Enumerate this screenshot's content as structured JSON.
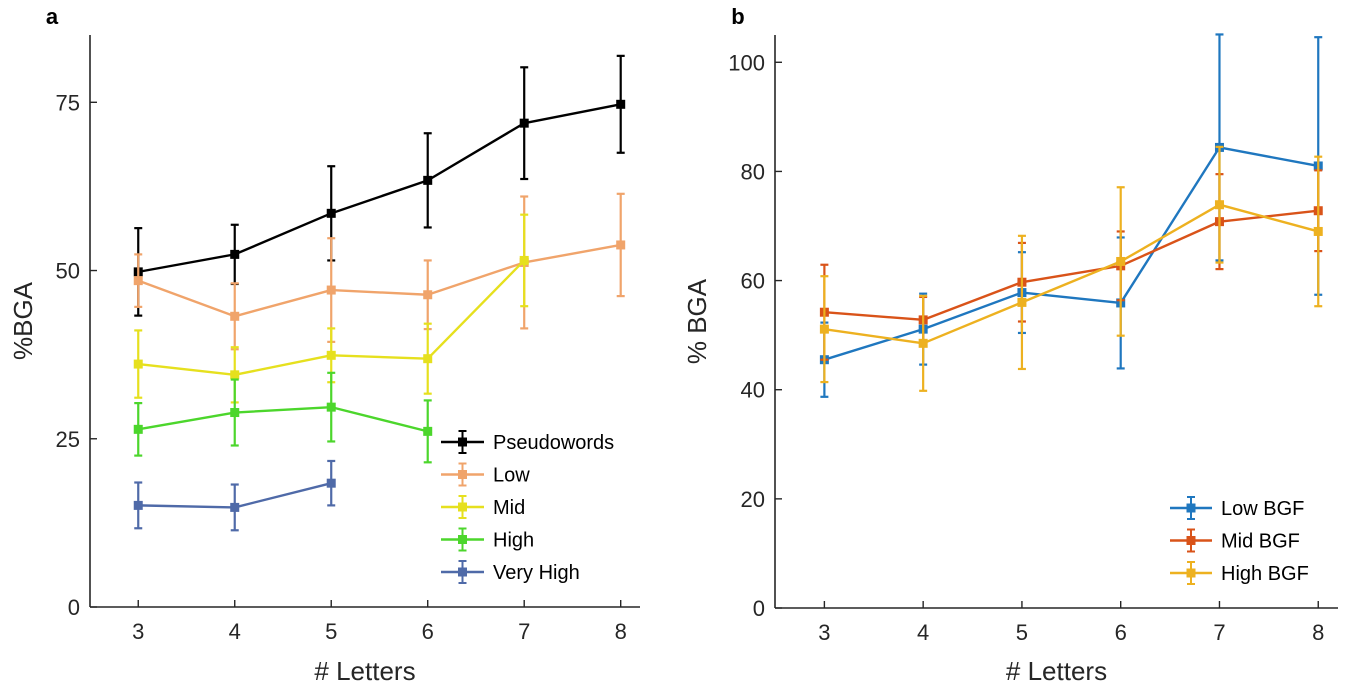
{
  "chart_data": [
    {
      "type": "line",
      "panel_label": "a",
      "x": [
        3,
        4,
        5,
        6,
        7,
        8
      ],
      "xlabel": "# Letters",
      "ylabel": "%BGA",
      "xlim": [
        2.5,
        8.2
      ],
      "ylim": [
        0,
        85
      ],
      "xticks": [
        3,
        4,
        5,
        6,
        7,
        8
      ],
      "yticks": [
        0,
        25,
        50,
        75
      ],
      "grid": false,
      "legend_position": "bottom-right",
      "series": [
        {
          "name": "Pseudowords",
          "color": "#000000",
          "values": [
            49.8,
            52.4,
            58.5,
            63.4,
            71.9,
            74.7
          ],
          "errors": [
            6.5,
            4.4,
            7.0,
            7.0,
            8.3,
            7.2
          ]
        },
        {
          "name": "Low",
          "color": "#F0A46B",
          "values": [
            48.5,
            43.2,
            47.1,
            46.4,
            51.2,
            53.8
          ],
          "errors": [
            3.9,
            4.9,
            7.7,
            5.1,
            9.8,
            7.6
          ]
        },
        {
          "name": "Mid",
          "color": "#E6E01E",
          "values": [
            36.1,
            34.5,
            37.4,
            36.9,
            51.5,
            null
          ],
          "errors": [
            5.0,
            4.1,
            4.0,
            5.2,
            6.8,
            null
          ]
        },
        {
          "name": "High",
          "color": "#4CD62C",
          "values": [
            26.4,
            28.9,
            29.7,
            26.1,
            null,
            null
          ],
          "errors": [
            3.9,
            4.9,
            5.1,
            4.6,
            null,
            null
          ]
        },
        {
          "name": "Very High",
          "color": "#4F6AA8",
          "values": [
            15.1,
            14.8,
            18.4,
            null,
            null,
            null
          ],
          "errors": [
            3.4,
            3.4,
            3.3,
            null,
            null,
            null
          ]
        }
      ]
    },
    {
      "type": "line",
      "panel_label": "b",
      "x": [
        3,
        4,
        5,
        6,
        7,
        8
      ],
      "xlabel": "# Letters",
      "ylabel": "% BGA",
      "xlim": [
        2.5,
        8.2
      ],
      "ylim": [
        0,
        105
      ],
      "xticks": [
        3,
        4,
        5,
        6,
        7,
        8
      ],
      "yticks": [
        0,
        20,
        40,
        60,
        80,
        100
      ],
      "grid": false,
      "legend_position": "bottom-right",
      "series": [
        {
          "name": "Low BGF",
          "color": "#1F77BF",
          "values": [
            45.5,
            51.1,
            57.8,
            55.9,
            84.4,
            81.0
          ],
          "errors": [
            6.8,
            6.5,
            7.4,
            12.0,
            20.7,
            23.6
          ]
        },
        {
          "name": "Mid BGF",
          "color": "#D95319",
          "values": [
            54.2,
            52.8,
            59.7,
            62.7,
            70.8,
            72.8
          ],
          "errors": [
            8.7,
            4.2,
            7.2,
            6.3,
            8.7,
            7.4
          ]
        },
        {
          "name": "High BGF",
          "color": "#EDB120",
          "values": [
            51.1,
            48.5,
            56.0,
            63.5,
            73.9,
            69.0
          ],
          "errors": [
            9.7,
            8.7,
            12.2,
            13.6,
            10.6,
            13.7
          ]
        }
      ]
    }
  ]
}
